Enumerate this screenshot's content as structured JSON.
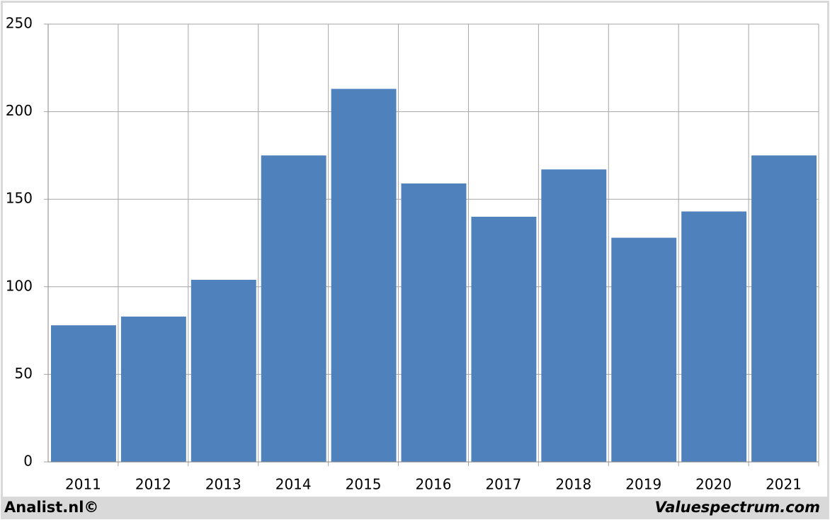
{
  "chart_data": {
    "type": "bar",
    "categories": [
      "2011",
      "2012",
      "2013",
      "2014",
      "2015",
      "2016",
      "2017",
      "2018",
      "2019",
      "2020",
      "2021"
    ],
    "values": [
      78,
      83,
      104,
      175,
      213,
      159,
      140,
      167,
      128,
      143,
      175
    ],
    "color": "#4f81bd",
    "ylim": [
      0,
      250
    ],
    "yticks": [
      0,
      50,
      100,
      150,
      200,
      250
    ],
    "grid": true
  },
  "footer": {
    "left": "Analist.nl©",
    "right": "Valuespectrum.com"
  }
}
